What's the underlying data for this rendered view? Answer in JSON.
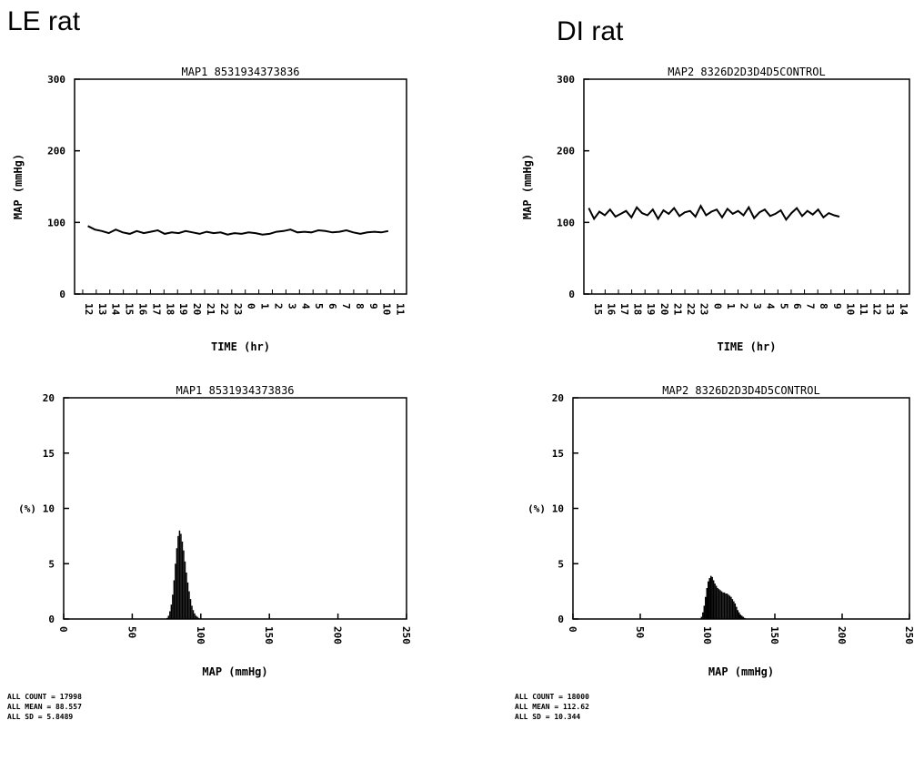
{
  "panels": [
    {
      "heading": "LE rat",
      "stats": [
        "ALL COUNT =  17998",
        "ALL MEAN =  88.557",
        "ALL SD =  5.8489"
      ]
    },
    {
      "heading": "DI rat",
      "stats": [
        "ALL COUNT =  18000",
        "ALL MEAN =  112.62",
        "ALL SD =  10.344"
      ]
    }
  ],
  "chart_data": [
    {
      "type": "line",
      "panel": "LE rat",
      "title": "MAP1 8531934373836",
      "xlabel": "TIME (hr)",
      "ylabel": "MAP (mmHg)",
      "ylim": [
        0,
        300
      ],
      "yticks": [
        0,
        100,
        200,
        300
      ],
      "ytick_labels": [
        "0",
        "100",
        "200",
        "300"
      ],
      "xticks": [
        "12",
        "13",
        "14",
        "15",
        "16",
        "17",
        "18",
        "19",
        "20",
        "21",
        "22",
        "23",
        "0",
        "1",
        "2",
        "3",
        "4",
        "5",
        "6",
        "7",
        "8",
        "9",
        "10",
        "11"
      ],
      "grid": false,
      "series": [
        {
          "values": [
            95,
            90,
            88,
            85,
            90,
            86,
            84,
            88,
            85,
            87,
            89,
            84,
            86,
            85,
            88,
            86,
            84,
            87,
            85,
            86,
            83,
            85,
            84,
            86,
            85,
            83,
            84,
            87,
            88,
            90,
            86,
            87,
            86,
            89,
            88,
            86,
            87,
            89,
            86,
            84,
            86,
            87,
            86,
            88
          ],
          "extent": [
            0.04,
            0.945
          ]
        }
      ]
    },
    {
      "type": "line",
      "panel": "DI rat",
      "title": "MAP2 8326D2D3D4D5CONTROL",
      "xlabel": "TIME (hr)",
      "ylabel": "MAP (mmHg)",
      "ylim": [
        0,
        300
      ],
      "yticks": [
        0,
        100,
        200,
        300
      ],
      "ytick_labels": [
        "0",
        "100",
        "200",
        "300"
      ],
      "xticks": [
        "15",
        "16",
        "17",
        "18",
        "19",
        "20",
        "21",
        "22",
        "23",
        "0",
        "1",
        "2",
        "3",
        "4",
        "5",
        "6",
        "7",
        "8",
        "9",
        "10",
        "11",
        "12",
        "13",
        "14"
      ],
      "grid": false,
      "series": [
        {
          "values": [
            120,
            105,
            115,
            110,
            118,
            108,
            112,
            116,
            107,
            121,
            113,
            110,
            118,
            105,
            117,
            112,
            120,
            109,
            114,
            116,
            108,
            123,
            110,
            115,
            118,
            107,
            119,
            112,
            116,
            110,
            121,
            106,
            114,
            118,
            109,
            112,
            117,
            104,
            113,
            120,
            109,
            116,
            111,
            118,
            107,
            113,
            110,
            108
          ],
          "extent": [
            0.015,
            0.785
          ]
        }
      ]
    },
    {
      "type": "histogram",
      "panel": "LE rat",
      "title": "MAP1 8531934373836",
      "xlabel": "MAP (mmHg)",
      "ylabel": "(%)",
      "xlim": [
        0,
        250
      ],
      "ylim": [
        0,
        20
      ],
      "xticks": [
        0,
        50,
        100,
        150,
        200,
        250
      ],
      "yticks": [
        0,
        5,
        10,
        15,
        20
      ],
      "ytick_labels": [
        "0",
        "5",
        "10",
        "15",
        "20"
      ],
      "grid": false,
      "bins": {
        "start": 75,
        "width": 1,
        "values": [
          0.1,
          0.3,
          0.7,
          1.3,
          2.2,
          3.5,
          5.0,
          6.4,
          7.5,
          8.0,
          7.7,
          7.0,
          6.2,
          5.2,
          4.2,
          3.3,
          2.5,
          1.8,
          1.2,
          0.8,
          0.5,
          0.3,
          0.2,
          0.1
        ]
      }
    },
    {
      "type": "histogram",
      "panel": "DI rat",
      "title": "MAP2 8326D2D3D4D5CONTROL",
      "xlabel": "MAP (mmHg)",
      "ylabel": "(%)",
      "xlim": [
        0,
        250
      ],
      "ylim": [
        0,
        20
      ],
      "xticks": [
        0,
        50,
        100,
        150,
        200,
        250
      ],
      "yticks": [
        0,
        5,
        10,
        15,
        20
      ],
      "ytick_labels": [
        "0",
        "5",
        "10",
        "15",
        "20"
      ],
      "grid": false,
      "bins": {
        "start": 95,
        "width": 1,
        "values": [
          0.2,
          0.6,
          1.2,
          2.0,
          2.8,
          3.4,
          3.7,
          3.9,
          3.8,
          3.5,
          3.2,
          3.0,
          2.8,
          2.7,
          2.6,
          2.5,
          2.4,
          2.4,
          2.3,
          2.3,
          2.2,
          2.1,
          2.0,
          1.8,
          1.6,
          1.4,
          1.1,
          0.8,
          0.6,
          0.4,
          0.3,
          0.2,
          0.1,
          0.05
        ]
      }
    }
  ]
}
